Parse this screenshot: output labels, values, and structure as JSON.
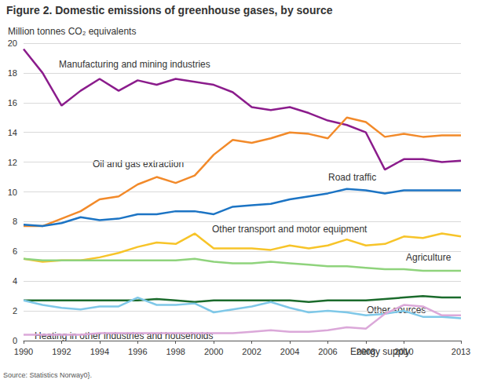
{
  "chart_data": {
    "type": "line",
    "title": "Figure 2. Domestic emissions of greenhouse gases, by source",
    "y_label": "Million tonnes CO₂ equivalents",
    "source": "Source: Statistics Norway0}.",
    "x": [
      1990,
      1991,
      1992,
      1993,
      1994,
      1995,
      1996,
      1997,
      1998,
      1999,
      2000,
      2001,
      2002,
      2003,
      2004,
      2005,
      2006,
      2007,
      2008,
      2009,
      2010,
      2011,
      2012,
      2013
    ],
    "series": [
      {
        "name": "Manufacturing and mining industries",
        "color": "#8b1c8c",
        "values": [
          19.6,
          18.0,
          15.8,
          16.8,
          17.6,
          16.8,
          17.5,
          17.2,
          17.6,
          17.4,
          17.2,
          16.7,
          15.7,
          15.5,
          15.7,
          15.3,
          14.8,
          14.5,
          14.0,
          11.5,
          12.2,
          12.2,
          12.0,
          12.1
        ]
      },
      {
        "name": "Oil and gas extraction",
        "color": "#f28a2a",
        "values": [
          7.7,
          7.7,
          8.2,
          8.7,
          9.5,
          9.7,
          10.5,
          11.0,
          10.6,
          11.1,
          12.5,
          13.5,
          13.3,
          13.6,
          14.0,
          13.9,
          13.6,
          15.0,
          14.7,
          13.7,
          13.9,
          13.7,
          13.8,
          13.8
        ]
      },
      {
        "name": "Road traffic",
        "color": "#1c74c4",
        "values": [
          7.8,
          7.7,
          7.9,
          8.3,
          8.1,
          8.2,
          8.5,
          8.5,
          8.7,
          8.7,
          8.5,
          9.0,
          9.1,
          9.2,
          9.5,
          9.7,
          9.9,
          10.2,
          10.1,
          9.9,
          10.1,
          10.1,
          10.1,
          10.1
        ]
      },
      {
        "name": "Other transport and motor equipment",
        "color": "#f7c429",
        "values": [
          5.5,
          5.3,
          5.4,
          5.4,
          5.6,
          5.9,
          6.3,
          6.6,
          6.5,
          7.2,
          6.2,
          6.2,
          6.2,
          6.1,
          6.4,
          6.2,
          6.4,
          6.8,
          6.4,
          6.5,
          7.0,
          6.9,
          7.2,
          7.0
        ]
      },
      {
        "name": "Agriculture",
        "color": "#8fd37c",
        "values": [
          5.5,
          5.4,
          5.4,
          5.4,
          5.4,
          5.4,
          5.4,
          5.4,
          5.4,
          5.5,
          5.3,
          5.2,
          5.2,
          5.3,
          5.2,
          5.1,
          5.0,
          5.0,
          4.9,
          4.8,
          4.8,
          4.7,
          4.7,
          4.7
        ]
      },
      {
        "name": "Other sources",
        "color": "#1b6b2c",
        "values": [
          2.7,
          2.7,
          2.7,
          2.7,
          2.7,
          2.7,
          2.7,
          2.8,
          2.7,
          2.6,
          2.7,
          2.7,
          2.7,
          2.7,
          2.7,
          2.6,
          2.7,
          2.7,
          2.7,
          2.8,
          2.9,
          3.0,
          2.9,
          2.9
        ]
      },
      {
        "name": "Heating in other industries and households",
        "color": "#7fc8e8",
        "values": [
          2.7,
          2.4,
          2.2,
          2.1,
          2.3,
          2.3,
          2.9,
          2.4,
          2.4,
          2.5,
          1.9,
          2.1,
          2.3,
          2.6,
          2.2,
          1.9,
          2.0,
          1.9,
          1.7,
          1.8,
          2.0,
          1.6,
          1.6,
          1.5
        ]
      },
      {
        "name": "Energy supply",
        "color": "#dba8d9",
        "values": [
          0.4,
          0.4,
          0.4,
          0.4,
          0.5,
          0.5,
          0.5,
          0.5,
          0.5,
          0.5,
          0.5,
          0.5,
          0.6,
          0.7,
          0.6,
          0.6,
          0.7,
          0.9,
          0.8,
          1.8,
          2.4,
          2.3,
          1.7,
          1.7
        ]
      }
    ],
    "xlim": [
      1990,
      2013
    ],
    "ylim": [
      0,
      20
    ],
    "xticks": [
      1990,
      1992,
      1994,
      1996,
      1998,
      2000,
      2002,
      2004,
      2006,
      2008,
      2010,
      2013
    ],
    "yticks": [
      0,
      2,
      4,
      6,
      8,
      10,
      12,
      14,
      16,
      18,
      20
    ],
    "grid": true
  }
}
